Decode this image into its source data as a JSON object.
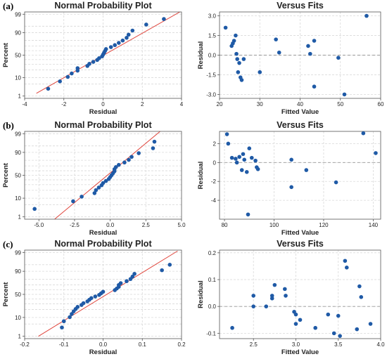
{
  "colors": {
    "point": "#1f5aa6",
    "fit_line": "#e0453c",
    "grid": "#d9d9d9",
    "ref_line": "#9a9a9a"
  },
  "panels": [
    {
      "id": "a",
      "label": "(a)"
    },
    {
      "id": "b",
      "label": "(b)"
    },
    {
      "id": "c",
      "label": "(c)"
    }
  ],
  "chart_data": [
    {
      "type": "scatter",
      "panel": "(a)",
      "title": "Normal Probability Plot",
      "xlabel": "Residual",
      "ylabel": "Percent",
      "xlim": [
        -4,
        4
      ],
      "xticks": [
        -4,
        -2,
        0,
        2,
        4
      ],
      "yticks": [
        1,
        10,
        50,
        90,
        99
      ],
      "y_scale": "normal-probability",
      "grid": true,
      "line": {
        "x": [
          -3.4,
          4.0
        ],
        "y": [
          1.5,
          99.4
        ]
      },
      "x": [
        -2.8,
        -2.2,
        -1.8,
        -1.6,
        -1.3,
        -1.3,
        -0.8,
        -0.7,
        -0.5,
        -0.3,
        -0.2,
        -0.05,
        0.0,
        0.05,
        0.1,
        0.15,
        0.4,
        0.6,
        0.8,
        1.0,
        1.2,
        1.3,
        1.5,
        2.2,
        3.1
      ],
      "y": [
        2.8,
        6.8,
        10.8,
        14.9,
        18.9,
        23.0,
        27.0,
        31.1,
        35.1,
        39.2,
        43.2,
        47.3,
        51.4,
        55.4,
        59.5,
        63.5,
        67.6,
        71.6,
        75.7,
        79.7,
        83.8,
        87.8,
        91.9,
        95.9,
        98.0
      ]
    },
    {
      "type": "scatter",
      "panel": "(a)",
      "title": "Versus Fits",
      "xlabel": "Fitted Value",
      "ylabel": "Residual",
      "xlim": [
        20,
        60
      ],
      "ylim": [
        -3.3,
        3.3
      ],
      "xticks": [
        20,
        30,
        40,
        50,
        60
      ],
      "yticks": [
        -3.0,
        -1.5,
        0.0,
        1.5,
        3.0
      ],
      "ref_y": 0,
      "grid": true,
      "x": [
        21.5,
        23.0,
        23.3,
        23.6,
        24.0,
        24.2,
        24.4,
        24.6,
        24.9,
        25.2,
        25.5,
        26.0,
        30.0,
        34.0,
        34.8,
        42.0,
        42.5,
        43.5,
        43.5,
        49.5,
        51.0,
        56.5
      ],
      "y": [
        2.1,
        0.7,
        0.9,
        1.1,
        1.5,
        0.1,
        -0.3,
        -1.3,
        -0.6,
        -1.7,
        -1.9,
        -0.3,
        -1.3,
        1.2,
        0.2,
        0.7,
        0.1,
        1.1,
        -2.4,
        -0.2,
        -3.0,
        3.0
      ]
    },
    {
      "type": "scatter",
      "panel": "(b)",
      "title": "Normal Probability Plot",
      "xlabel": "Residual",
      "ylabel": "Percent",
      "xlim": [
        -6,
        5
      ],
      "xticks": [
        -5.0,
        -2.5,
        0.0,
        2.5,
        5.0
      ],
      "yticks": [
        1,
        10,
        50,
        90,
        99
      ],
      "y_scale": "normal-probability",
      "grid": true,
      "line": {
        "x": [
          -3.9,
          3.5
        ],
        "y": [
          0.7,
          99.3
        ]
      },
      "x": [
        -5.3,
        -2.6,
        -2.0,
        -1.1,
        -1.0,
        -0.8,
        -0.6,
        -0.5,
        -0.3,
        -0.1,
        0.0,
        0.1,
        0.2,
        0.3,
        0.3,
        0.4,
        0.6,
        1.0,
        1.3,
        1.5,
        2.0,
        3.0,
        3.1
      ],
      "y": [
        3.0,
        7.3,
        11.6,
        15.9,
        20.3,
        24.6,
        28.9,
        33.2,
        37.5,
        41.8,
        46.1,
        50.4,
        54.7,
        59.1,
        63.4,
        67.7,
        72.0,
        76.3,
        80.6,
        84.9,
        89.2,
        93.5,
        97.0
      ]
    },
    {
      "type": "scatter",
      "panel": "(b)",
      "title": "Versus Fits",
      "xlabel": "Fitted Value",
      "ylabel": "Residual",
      "xlim": [
        78,
        143
      ],
      "ylim": [
        -6,
        3.3
      ],
      "xticks": [
        80,
        100,
        120,
        140
      ],
      "yticks": [
        -4,
        -2,
        0,
        2
      ],
      "ref_y": 0,
      "grid": true,
      "x": [
        81,
        81.5,
        83,
        84.5,
        85,
        86,
        87,
        87.5,
        88,
        89,
        89.5,
        90,
        91,
        92.5,
        93,
        93.5,
        107,
        107,
        113,
        125,
        136,
        141
      ],
      "y": [
        3.0,
        2.0,
        0.5,
        0.4,
        0.0,
        0.6,
        -0.8,
        0.9,
        0.3,
        -1.0,
        -5.5,
        1.5,
        0.5,
        0.2,
        -0.5,
        -0.7,
        0.3,
        -2.6,
        -0.8,
        -2.1,
        3.1,
        1.0
      ]
    },
    {
      "type": "scatter",
      "panel": "(c)",
      "title": "Normal Probability Plot",
      "xlabel": "Residual",
      "ylabel": "Percent",
      "xlim": [
        -0.2,
        0.2
      ],
      "xticks": [
        -0.2,
        -0.1,
        0.0,
        0.1,
        0.2
      ],
      "yticks": [
        1,
        10,
        50,
        90,
        99
      ],
      "y_scale": "normal-probability",
      "grid": true,
      "line": {
        "x": [
          -0.165,
          0.19
        ],
        "y": [
          1.0,
          99.2
        ]
      },
      "x": [
        -0.105,
        -0.1,
        -0.085,
        -0.08,
        -0.075,
        -0.07,
        -0.065,
        -0.055,
        -0.05,
        -0.04,
        -0.035,
        -0.03,
        -0.02,
        -0.01,
        -0.005,
        0.0,
        0.03,
        0.035,
        0.04,
        0.04,
        0.045,
        0.06,
        0.07,
        0.075,
        0.08,
        0.15,
        0.17
      ],
      "y": [
        3.3,
        6.8,
        10.3,
        13.8,
        17.3,
        20.8,
        24.3,
        27.8,
        31.3,
        34.8,
        38.3,
        41.8,
        45.3,
        48.8,
        52.3,
        55.8,
        59.3,
        62.8,
        66.3,
        69.8,
        73.3,
        76.8,
        80.3,
        83.8,
        87.3,
        91.0,
        95.0
      ]
    },
    {
      "type": "scatter",
      "panel": "(c)",
      "title": "Versus Fits",
      "xlabel": "Fitted Value",
      "ylabel": "Residual",
      "xlim": [
        2.1,
        4.0
      ],
      "ylim": [
        -0.12,
        0.21
      ],
      "xticks": [
        2.5,
        3.0,
        3.5,
        4.0
      ],
      "yticks": [
        -0.1,
        0.0,
        0.1,
        0.2
      ],
      "ref_y": 0,
      "grid": true,
      "x": [
        2.25,
        2.5,
        2.5,
        2.65,
        2.72,
        2.72,
        2.75,
        2.87,
        2.88,
        2.98,
        3.0,
        3.0,
        3.05,
        3.23,
        3.38,
        3.45,
        3.5,
        3.52,
        3.58,
        3.6,
        3.72,
        3.75,
        3.77,
        3.88
      ],
      "y": [
        -0.08,
        0.04,
        0.0,
        0.0,
        0.04,
        0.03,
        0.08,
        0.065,
        0.04,
        -0.02,
        -0.03,
        -0.065,
        -0.05,
        -0.08,
        -0.03,
        -0.1,
        -0.035,
        -0.11,
        0.17,
        0.145,
        -0.085,
        0.075,
        0.035,
        -0.065
      ]
    }
  ]
}
